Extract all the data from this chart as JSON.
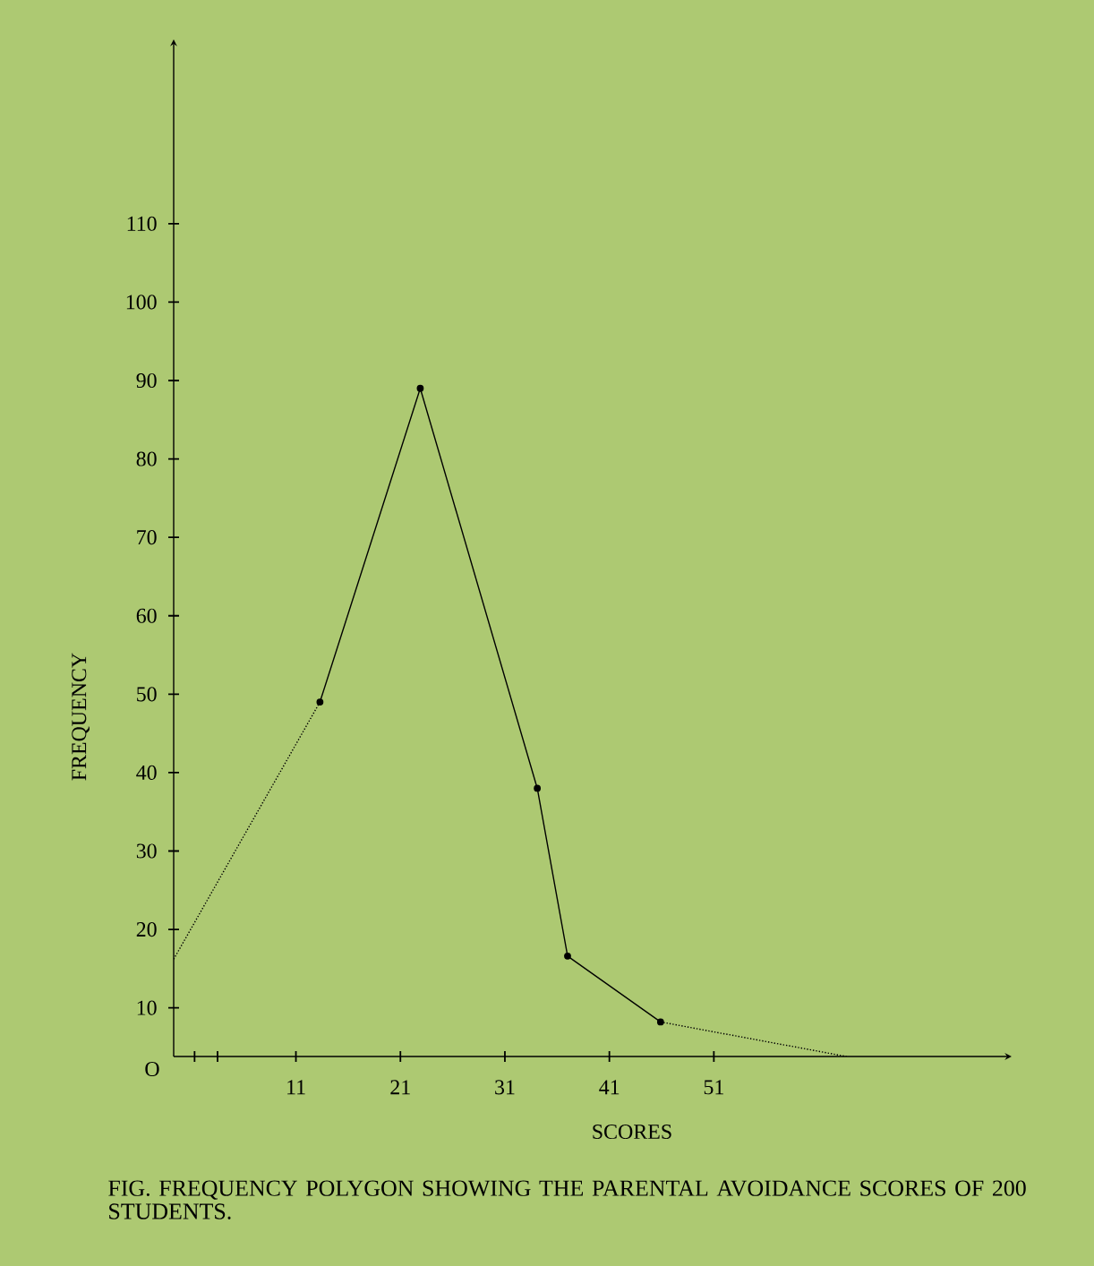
{
  "chart_data": {
    "type": "line",
    "xlabel": "SCORES",
    "ylabel": "FREQUENCY",
    "annotations": [
      "O",
      "FIG.  FREQUENCY POLYGON SHOWING THE PARENTAL AVOIDANCE SCORES OF 200 STUDENTS."
    ],
    "series": [
      {
        "color": "#000000",
        "x": [
          13.3,
          22.9,
          34.1,
          37,
          45.9
        ],
        "values": [
          49,
          89,
          38,
          16.6,
          8.2
        ],
        "marker": "circle",
        "line_style": "solid"
      },
      {
        "color": "#000000",
        "x": [
          -0.7,
          13.3
        ],
        "values": [
          16.2,
          49
        ],
        "marker": "none",
        "line_style": "dotted"
      },
      {
        "color": "#000000",
        "x": [
          45.9,
          63.7
        ],
        "values": [
          8.2,
          3.8
        ],
        "marker": "none",
        "line_style": "dotted"
      }
    ],
    "xlim": [
      -0.7,
      79.5
    ],
    "ylim": [
      3.8,
      133.5
    ],
    "xticks": [
      {
        "value": 1.3,
        "label": null
      },
      {
        "value": 3.5,
        "label": null
      },
      11,
      21,
      31,
      41,
      51
    ],
    "yticks": [
      10,
      20,
      30,
      40,
      50,
      60,
      70,
      80,
      90,
      100,
      110
    ],
    "grid": false
  }
}
